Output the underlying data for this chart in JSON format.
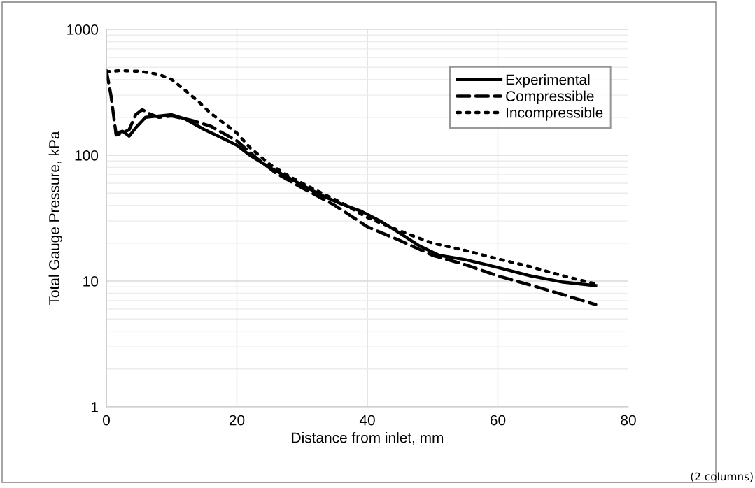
{
  "chart_data": {
    "type": "line",
    "xlabel": "Distance from inlet, mm",
    "ylabel": "Total Gauge Pressure, kPa",
    "xlim": [
      0,
      80
    ],
    "xticks": [
      0,
      20,
      40,
      60,
      80
    ],
    "ylim": [
      1,
      1000
    ],
    "yticks": [
      1,
      10,
      100,
      1000
    ],
    "log": "y",
    "grid": true,
    "legend": "top right",
    "series": [
      {
        "name": "Experimental",
        "color": "#000000",
        "line_style": "solid",
        "x": [
          1.5,
          2.5,
          3.5,
          4.5,
          6,
          8,
          10,
          12,
          15,
          18,
          20,
          22,
          25,
          28,
          30,
          33,
          36,
          39,
          42,
          45,
          48,
          51,
          55,
          60,
          65,
          70,
          75
        ],
        "values": [
          150,
          155,
          142,
          165,
          200,
          205,
          210,
          195,
          160,
          135,
          120,
          100,
          80,
          66,
          58,
          48,
          41,
          36,
          30,
          24,
          19,
          16,
          14.8,
          12.8,
          11,
          9.8,
          9.2
        ]
      },
      {
        "name": "Compressible",
        "color": "#000000",
        "line_style": "dashed",
        "x": [
          0,
          0.7,
          1.5,
          2.5,
          3.5,
          4.5,
          5.5,
          6.5,
          8,
          10,
          13,
          16,
          20,
          23,
          26,
          30,
          35,
          40,
          45,
          50,
          55,
          60,
          65,
          70,
          75
        ],
        "values": [
          470,
          300,
          145,
          150,
          160,
          210,
          230,
          215,
          200,
          205,
          190,
          170,
          130,
          95,
          72,
          55,
          40,
          27,
          21,
          16,
          13.5,
          11,
          9.3,
          7.8,
          6.5
        ]
      },
      {
        "name": "Incompressible",
        "color": "#000000",
        "line_style": "dotted",
        "x": [
          0,
          2,
          5,
          8,
          10,
          12,
          14,
          16,
          18,
          20,
          22,
          25,
          28,
          30,
          33,
          36,
          40,
          45,
          50,
          55,
          60,
          65,
          70,
          75
        ],
        "values": [
          460,
          470,
          465,
          440,
          400,
          330,
          270,
          215,
          180,
          150,
          115,
          85,
          68,
          60,
          50,
          42,
          32,
          25,
          20,
          17.5,
          15,
          13,
          11,
          9.5
        ]
      }
    ],
    "annotations": [
      "(2 columns)"
    ]
  }
}
